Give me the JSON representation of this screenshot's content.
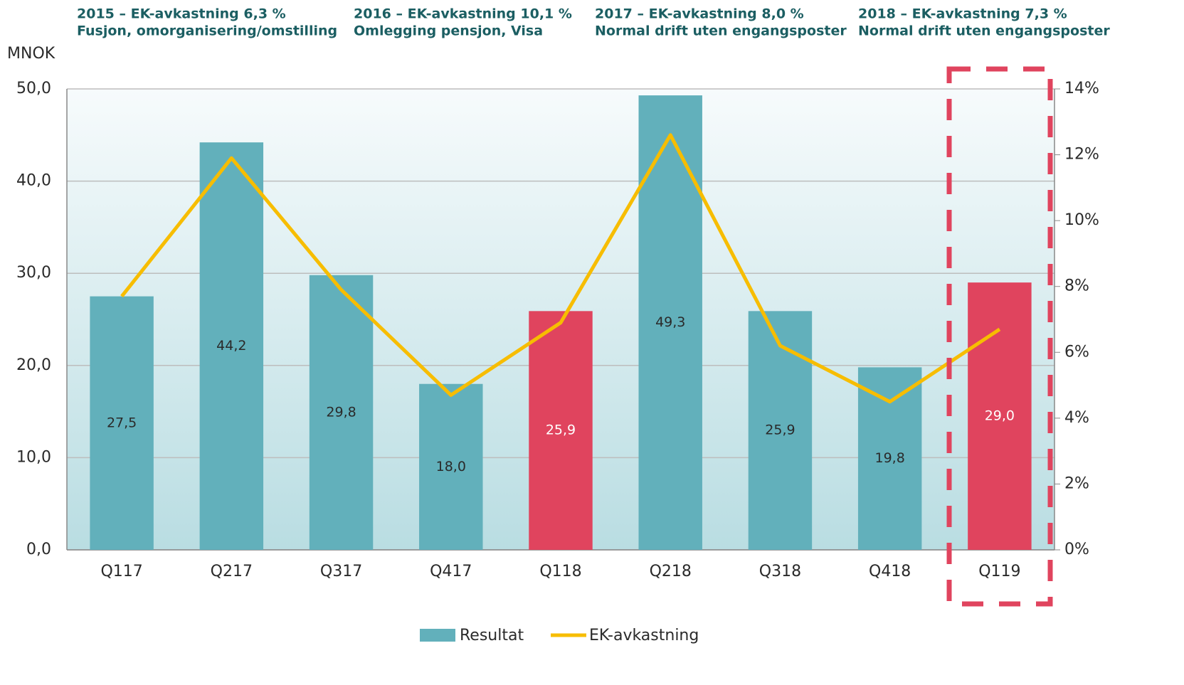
{
  "chart_data": {
    "type": "bar",
    "y_label": "MNOK",
    "annotations": [
      {
        "title": "2015 – EK-avkastning 6,3 %",
        "text": "Fusjon, omorganisering/omstilling"
      },
      {
        "title": "2016 – EK-avkastning 10,1 %",
        "text": "Omlegging pensjon, Visa"
      },
      {
        "title": "2017 – EK-avkastning 8,0 %",
        "text": "Normal drift uten engangsposter"
      },
      {
        "title": "2018 – EK-avkastning 7,3 %",
        "text": "Normal drift uten engangsposter"
      }
    ],
    "categories": [
      "Q117",
      "Q217",
      "Q317",
      "Q417",
      "Q118",
      "Q218",
      "Q318",
      "Q418",
      "Q119"
    ],
    "series": [
      {
        "name": "Resultat",
        "color": "#62b0bb",
        "colors": [
          "#62b0bb",
          "#62b0bb",
          "#62b0bb",
          "#62b0bb",
          "#e0445e",
          "#62b0bb",
          "#62b0bb",
          "#62b0bb",
          "#e0445e"
        ],
        "values": [
          27.5,
          44.2,
          29.8,
          18.0,
          25.9,
          49.3,
          25.9,
          19.8,
          29.0
        ],
        "value_labels": [
          "27,5",
          "44,2",
          "29,8",
          "18,0",
          "25,9",
          "49,3",
          "25,9",
          "19,8",
          "29,0"
        ]
      },
      {
        "name": "EK-avkastning",
        "color": "#f7bd00",
        "axis": "y2",
        "values": [
          7.7,
          11.9,
          7.9,
          4.7,
          6.9,
          12.6,
          6.2,
          4.5,
          6.7
        ]
      }
    ],
    "ylim": [
      0,
      50
    ],
    "yticks": [
      {
        "value": 0,
        "label": "0,0"
      },
      {
        "value": 10,
        "label": "10,0"
      },
      {
        "value": 20,
        "label": "20,0"
      },
      {
        "value": 30,
        "label": "30,0"
      },
      {
        "value": 40,
        "label": "40,0"
      },
      {
        "value": 50,
        "label": "50,0"
      }
    ],
    "y2lim": [
      0,
      14
    ],
    "y2ticks": [
      {
        "value": 0,
        "label": "0%"
      },
      {
        "value": 2,
        "label": "2%"
      },
      {
        "value": 4,
        "label": "4%"
      },
      {
        "value": 6,
        "label": "6%"
      },
      {
        "value": 8,
        "label": "8%"
      },
      {
        "value": 10,
        "label": "10%"
      },
      {
        "value": 12,
        "label": "12%"
      },
      {
        "value": 14,
        "label": "14%"
      }
    ],
    "grid": true,
    "legend": "bottom"
  }
}
